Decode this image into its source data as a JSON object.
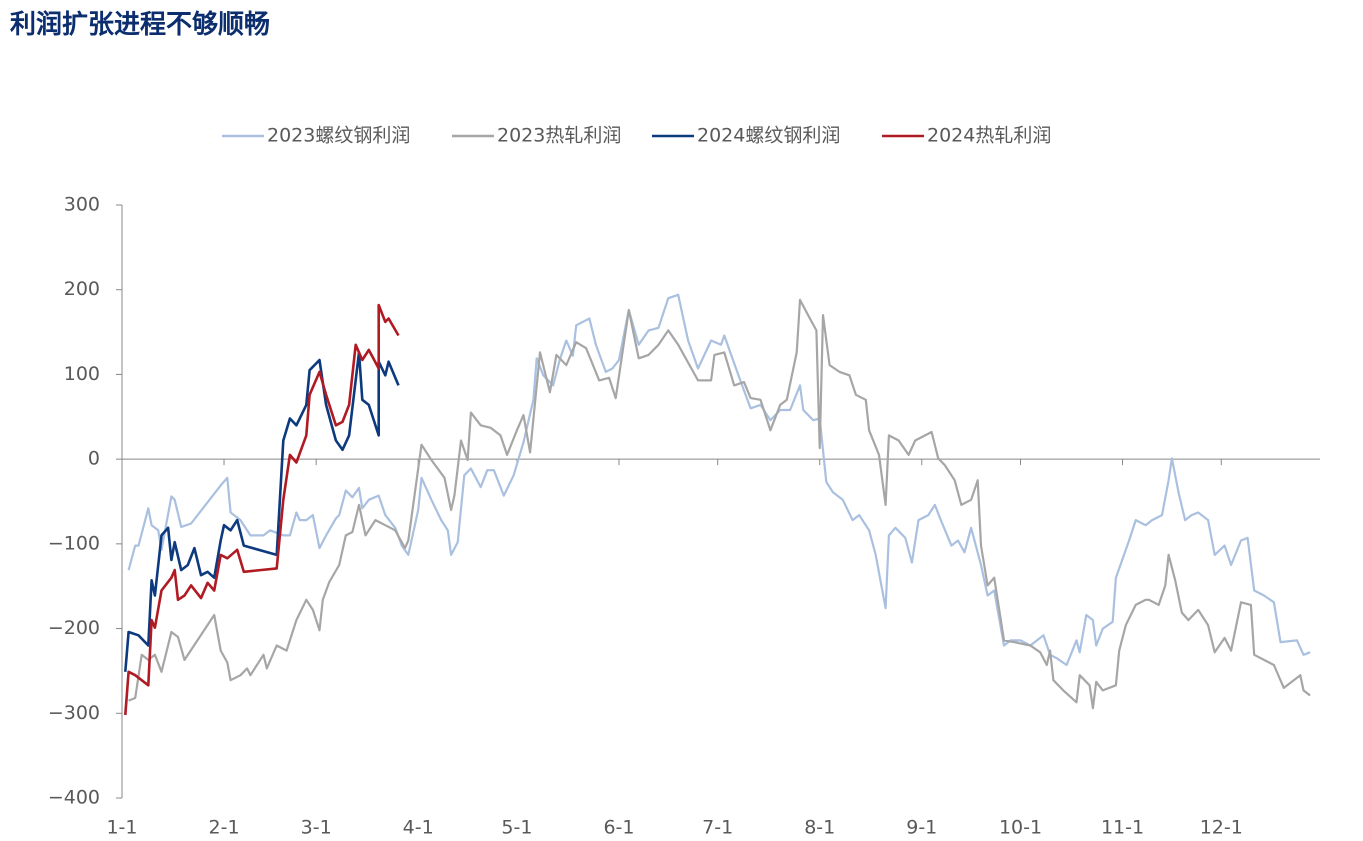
{
  "chart_data": {
    "type": "line",
    "title": "利润扩张进程不够顺畅",
    "xlim": [
      0,
      364
    ],
    "ylim": [
      -400,
      300
    ],
    "xticks": [
      {
        "value": 0,
        "label": "1-1"
      },
      {
        "value": 31,
        "label": "2-1"
      },
      {
        "value": 59,
        "label": "3-1"
      },
      {
        "value": 90,
        "label": "4-1"
      },
      {
        "value": 120,
        "label": "5-1"
      },
      {
        "value": 151,
        "label": "6-1"
      },
      {
        "value": 181,
        "label": "7-1"
      },
      {
        "value": 212,
        "label": "8-1"
      },
      {
        "value": 243,
        "label": "9-1"
      },
      {
        "value": 273,
        "label": "10-1"
      },
      {
        "value": 304,
        "label": "11-1"
      },
      {
        "value": 334,
        "label": "12-1"
      }
    ],
    "yticks": [
      {
        "value": -400,
        "label": "−400"
      },
      {
        "value": -300,
        "label": "−300"
      },
      {
        "value": -200,
        "label": "−200"
      },
      {
        "value": -100,
        "label": "−100"
      },
      0,
      100,
      200,
      300
    ],
    "series": [
      {
        "name": "2023螺纹钢利润",
        "color": "#aac0e0",
        "x": [
          2,
          4,
          5,
          8,
          9,
          11,
          12,
          15,
          16,
          18,
          21,
          30,
          32,
          33,
          36,
          39,
          43,
          45,
          49,
          51,
          53,
          54,
          56,
          58,
          60,
          62,
          65,
          66,
          68,
          70,
          72,
          73,
          75,
          78,
          80,
          83,
          85,
          87,
          90,
          91,
          94,
          97,
          99,
          100,
          102,
          104,
          106,
          109,
          111,
          113,
          116,
          119,
          122,
          125,
          126,
          128,
          131,
          133,
          135,
          137,
          138,
          141,
          142,
          144,
          147,
          149,
          151,
          154,
          157,
          160,
          163,
          166,
          169,
          172,
          175,
          179,
          182,
          183,
          186,
          189,
          191,
          194,
          197,
          200,
          203,
          206,
          207,
          210,
          212,
          214,
          216,
          219,
          222,
          224,
          227,
          229,
          232,
          233,
          235,
          238,
          240,
          242,
          245,
          247,
          249,
          252,
          254,
          256,
          258,
          261,
          263,
          265,
          268,
          270,
          273,
          276,
          280,
          282,
          284,
          287,
          290,
          291,
          293,
          295,
          296,
          298,
          301,
          302,
          306,
          308,
          311,
          313,
          316,
          318,
          319,
          321,
          323,
          325,
          327,
          330,
          332,
          335,
          337,
          340,
          342,
          344,
          347,
          350,
          352,
          357,
          359,
          361
        ],
        "values": [
          -131,
          -102,
          -102,
          -58,
          -78,
          -84,
          -107,
          -44,
          -48,
          -80,
          -76,
          -31,
          -22,
          -63,
          -72,
          -90,
          -90,
          -84,
          -90,
          -90,
          -63,
          -72,
          -72,
          -66,
          -105,
          -90,
          -70,
          -66,
          -37,
          -45,
          -34,
          -58,
          -48,
          -43,
          -66,
          -81,
          -102,
          -113,
          -60,
          -22,
          -48,
          -72,
          -84,
          -113,
          -98,
          -19,
          -11,
          -33,
          -13,
          -13,
          -43,
          -19,
          20,
          70,
          119,
          99,
          87,
          117,
          140,
          122,
          158,
          164,
          166,
          135,
          103,
          107,
          117,
          176,
          135,
          152,
          155,
          190,
          194,
          140,
          107,
          140,
          135,
          146,
          113,
          81,
          60,
          64,
          46,
          58,
          58,
          87,
          58,
          46,
          48,
          -27,
          -39,
          -48,
          -72,
          -66,
          -84,
          -113,
          -176,
          -90,
          -81,
          -93,
          -122,
          -72,
          -66,
          -54,
          -74,
          -102,
          -96,
          -110,
          -81,
          -125,
          -161,
          -155,
          -220,
          -214,
          -214,
          -220,
          -208,
          -231,
          -235,
          -243,
          -214,
          -228,
          -184,
          -190,
          -220,
          -200,
          -192,
          -140,
          -96,
          -72,
          -78,
          -72,
          -66,
          -25,
          1,
          -39,
          -72,
          -66,
          -63,
          -72,
          -113,
          -102,
          -125,
          -96,
          -93,
          -155,
          -161,
          -169,
          -216,
          -214,
          -231,
          -228
        ]
      },
      {
        "name": "2023热轧利润",
        "color": "#a6a6a6",
        "x": [
          2,
          4,
          6,
          8,
          10,
          12,
          15,
          17,
          19,
          28,
          30,
          32,
          33,
          36,
          38,
          39,
          43,
          44,
          47,
          50,
          53,
          56,
          58,
          60,
          61,
          63,
          66,
          68,
          70,
          72,
          74,
          77,
          80,
          83,
          86,
          87,
          91,
          94,
          98,
          100,
          101,
          103,
          105,
          106,
          109,
          112,
          115,
          117,
          120,
          122,
          124,
          127,
          130,
          132,
          135,
          138,
          141,
          145,
          148,
          150,
          154,
          157,
          160,
          163,
          166,
          169,
          173,
          175,
          179,
          180,
          183,
          186,
          189,
          191,
          194,
          197,
          200,
          202,
          205,
          206,
          209,
          211,
          212,
          213,
          215,
          218,
          221,
          223,
          226,
          227,
          230,
          232,
          233,
          236,
          239,
          241,
          244,
          246,
          248,
          250,
          253,
          255,
          258,
          260,
          261,
          263,
          265,
          268,
          271,
          276,
          279,
          281,
          282,
          283,
          286,
          290,
          291,
          294,
          295,
          296,
          298,
          302,
          303,
          305,
          308,
          311,
          312,
          315,
          317,
          318,
          320,
          322,
          324,
          327,
          330,
          332,
          335,
          337,
          340,
          343,
          344,
          347,
          350,
          353,
          358,
          359,
          361
        ],
        "values": [
          -285,
          -282,
          -231,
          -237,
          -231,
          -251,
          -204,
          -210,
          -237,
          -184,
          -226,
          -240,
          -261,
          -255,
          -247,
          -255,
          -231,
          -247,
          -220,
          -226,
          -190,
          -166,
          -178,
          -202,
          -166,
          -145,
          -125,
          -90,
          -86,
          -54,
          -90,
          -72,
          -78,
          -84,
          -105,
          -96,
          17,
          -1,
          -22,
          -60,
          -43,
          22,
          -1,
          55,
          40,
          37,
          28,
          5,
          34,
          52,
          8,
          126,
          79,
          123,
          111,
          138,
          131,
          93,
          96,
          72,
          176,
          119,
          123,
          135,
          152,
          135,
          107,
          93,
          93,
          123,
          126,
          87,
          91,
          72,
          70,
          34,
          64,
          70,
          126,
          188,
          166,
          152,
          13,
          170,
          111,
          103,
          99,
          76,
          70,
          34,
          5,
          -54,
          28,
          22,
          5,
          22,
          28,
          32,
          1,
          -7,
          -25,
          -54,
          -48,
          -25,
          -102,
          -149,
          -140,
          -214,
          -216,
          -220,
          -228,
          -243,
          -226,
          -261,
          -273,
          -287,
          -255,
          -267,
          -294,
          -263,
          -273,
          -267,
          -226,
          -196,
          -172,
          -166,
          -166,
          -172,
          -149,
          -113,
          -143,
          -181,
          -190,
          -178,
          -196,
          -228,
          -211,
          -226,
          -169,
          -172,
          -231,
          -237,
          -243,
          -270,
          -255,
          -273,
          -279
        ]
      },
      {
        "name": "2024螺纹钢利润",
        "color": "#0d3a7e",
        "x": [
          1,
          2,
          5,
          8,
          9,
          10,
          12,
          14,
          15,
          16,
          18,
          20,
          22,
          24,
          26,
          28,
          30,
          31,
          33,
          35,
          37,
          47,
          49,
          51,
          53,
          56,
          57,
          60,
          62,
          65,
          67,
          69,
          72,
          73,
          75,
          78,
          78,
          80,
          81,
          84
        ],
        "values": [
          -251,
          -204,
          -208,
          -220,
          -143,
          -161,
          -90,
          -81,
          -119,
          -98,
          -131,
          -125,
          -105,
          -137,
          -133,
          -140,
          -96,
          -78,
          -84,
          -72,
          -102,
          -113,
          22,
          48,
          40,
          64,
          105,
          117,
          64,
          22,
          11,
          28,
          126,
          70,
          64,
          28,
          115,
          99,
          115,
          87
        ]
      },
      {
        "name": "2024热轧利润",
        "color": "#b01a23",
        "x": [
          1,
          2,
          4,
          8,
          9,
          10,
          12,
          15,
          16,
          17,
          19,
          21,
          24,
          26,
          28,
          30,
          32,
          35,
          37,
          47,
          49,
          51,
          53,
          56,
          57,
          60,
          62,
          65,
          67,
          69,
          71,
          73,
          75,
          78,
          78,
          80,
          81,
          84
        ],
        "values": [
          -302,
          -251,
          -255,
          -267,
          -190,
          -199,
          -155,
          -140,
          -131,
          -166,
          -161,
          -149,
          -164,
          -146,
          -155,
          -113,
          -117,
          -107,
          -133,
          -129,
          -48,
          5,
          -4,
          28,
          76,
          103,
          76,
          40,
          44,
          64,
          135,
          117,
          129,
          107,
          182,
          162,
          166,
          146
        ]
      }
    ]
  }
}
